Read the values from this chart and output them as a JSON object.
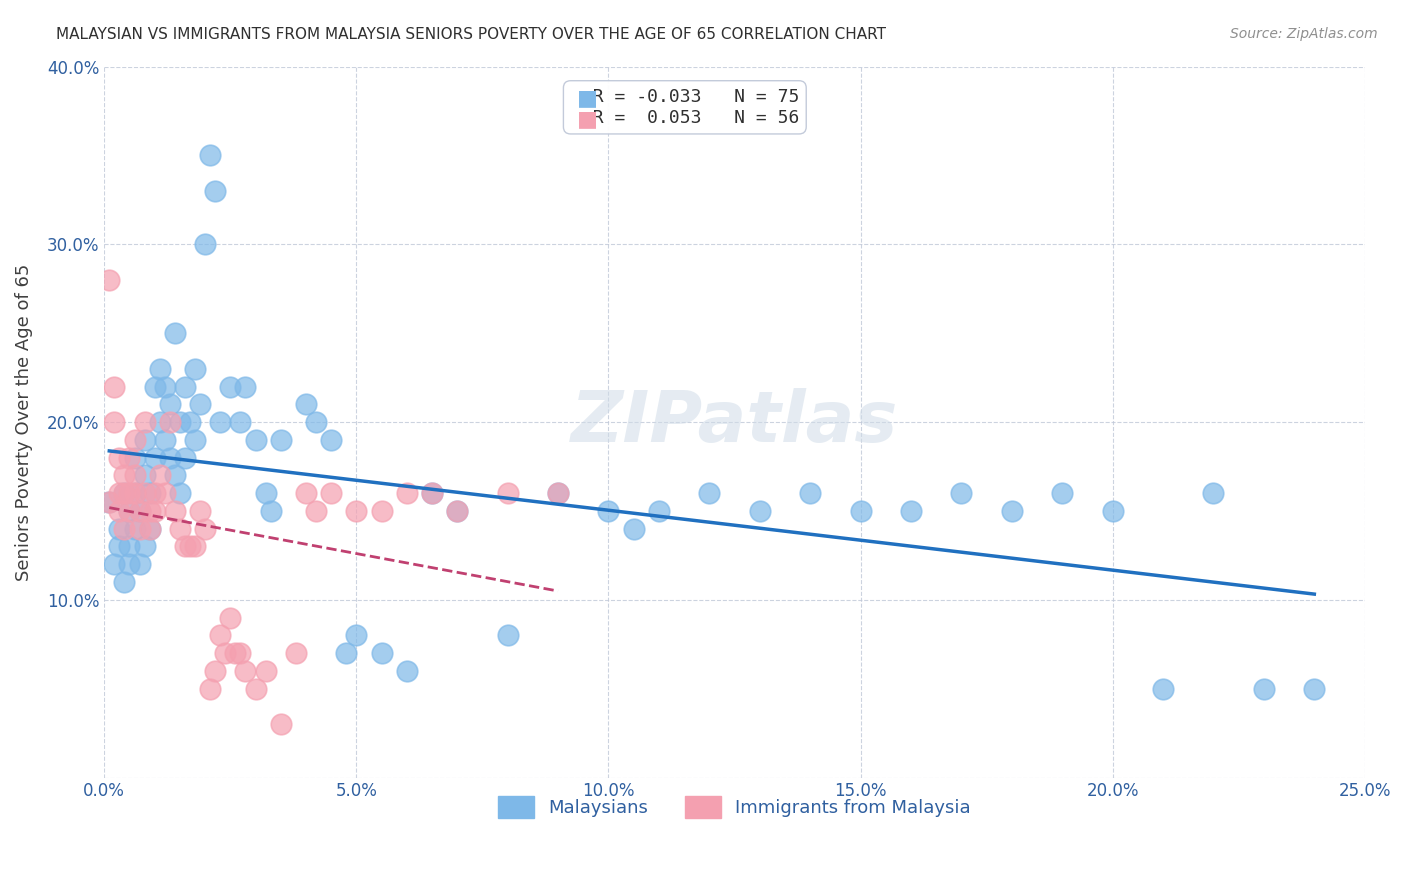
{
  "title": "MALAYSIAN VS IMMIGRANTS FROM MALAYSIA SENIORS POVERTY OVER THE AGE OF 65 CORRELATION CHART",
  "source": "Source: ZipAtlas.com",
  "xlabel": "",
  "ylabel": "Seniors Poverty Over the Age of 65",
  "xlim": [
    0.0,
    0.25
  ],
  "ylim": [
    0.0,
    0.4
  ],
  "xticks": [
    0.0,
    0.05,
    0.1,
    0.15,
    0.2,
    0.25
  ],
  "yticks": [
    0.0,
    0.1,
    0.2,
    0.3,
    0.4
  ],
  "xtick_labels": [
    "0.0%",
    "5.0%",
    "10.0%",
    "15.0%",
    "20.0%",
    "25.0%"
  ],
  "ytick_labels": [
    "",
    "10.0%",
    "20.0%",
    "30.0%",
    "40.0%"
  ],
  "blue_R": "-0.033",
  "blue_N": "75",
  "pink_R": "0.053",
  "pink_N": "56",
  "legend1_label": "Malaysians",
  "legend2_label": "Immigrants from Malaysia",
  "watermark": "ZIPatlas",
  "blue_color": "#7eb8e8",
  "pink_color": "#f4a0b0",
  "blue_line_color": "#2070c0",
  "pink_line_color": "#c04070",
  "background_color": "#ffffff",
  "blue_scatter_x": [
    0.001,
    0.002,
    0.003,
    0.003,
    0.004,
    0.004,
    0.005,
    0.005,
    0.005,
    0.006,
    0.006,
    0.006,
    0.007,
    0.007,
    0.008,
    0.008,
    0.008,
    0.009,
    0.009,
    0.01,
    0.01,
    0.011,
    0.011,
    0.012,
    0.012,
    0.013,
    0.013,
    0.014,
    0.014,
    0.015,
    0.015,
    0.016,
    0.016,
    0.017,
    0.018,
    0.018,
    0.019,
    0.02,
    0.021,
    0.022,
    0.023,
    0.025,
    0.027,
    0.028,
    0.03,
    0.032,
    0.033,
    0.035,
    0.04,
    0.042,
    0.045,
    0.048,
    0.05,
    0.055,
    0.06,
    0.065,
    0.07,
    0.08,
    0.09,
    0.1,
    0.105,
    0.11,
    0.12,
    0.13,
    0.14,
    0.15,
    0.16,
    0.17,
    0.18,
    0.19,
    0.2,
    0.21,
    0.22,
    0.23,
    0.24
  ],
  "blue_scatter_y": [
    0.155,
    0.12,
    0.14,
    0.13,
    0.11,
    0.16,
    0.13,
    0.12,
    0.15,
    0.14,
    0.16,
    0.18,
    0.15,
    0.12,
    0.13,
    0.17,
    0.19,
    0.14,
    0.16,
    0.22,
    0.18,
    0.2,
    0.23,
    0.19,
    0.22,
    0.18,
    0.21,
    0.17,
    0.25,
    0.16,
    0.2,
    0.22,
    0.18,
    0.2,
    0.23,
    0.19,
    0.21,
    0.3,
    0.35,
    0.33,
    0.2,
    0.22,
    0.2,
    0.22,
    0.19,
    0.16,
    0.15,
    0.19,
    0.21,
    0.2,
    0.19,
    0.07,
    0.08,
    0.07,
    0.06,
    0.16,
    0.15,
    0.08,
    0.16,
    0.15,
    0.14,
    0.15,
    0.16,
    0.15,
    0.16,
    0.15,
    0.15,
    0.16,
    0.15,
    0.16,
    0.15,
    0.05,
    0.16,
    0.05,
    0.05
  ],
  "pink_scatter_x": [
    0.001,
    0.001,
    0.002,
    0.002,
    0.003,
    0.003,
    0.003,
    0.004,
    0.004,
    0.004,
    0.005,
    0.005,
    0.005,
    0.006,
    0.006,
    0.006,
    0.007,
    0.007,
    0.008,
    0.008,
    0.009,
    0.009,
    0.01,
    0.01,
    0.011,
    0.012,
    0.013,
    0.014,
    0.015,
    0.016,
    0.017,
    0.018,
    0.019,
    0.02,
    0.021,
    0.022,
    0.023,
    0.024,
    0.025,
    0.026,
    0.027,
    0.028,
    0.03,
    0.032,
    0.035,
    0.038,
    0.04,
    0.042,
    0.045,
    0.05,
    0.055,
    0.06,
    0.065,
    0.07,
    0.08,
    0.09
  ],
  "pink_scatter_y": [
    0.155,
    0.28,
    0.2,
    0.22,
    0.18,
    0.16,
    0.15,
    0.17,
    0.16,
    0.14,
    0.15,
    0.16,
    0.18,
    0.17,
    0.19,
    0.16,
    0.15,
    0.14,
    0.16,
    0.2,
    0.14,
    0.15,
    0.15,
    0.16,
    0.17,
    0.16,
    0.2,
    0.15,
    0.14,
    0.13,
    0.13,
    0.13,
    0.15,
    0.14,
    0.05,
    0.06,
    0.08,
    0.07,
    0.09,
    0.07,
    0.07,
    0.06,
    0.05,
    0.06,
    0.03,
    0.07,
    0.16,
    0.15,
    0.16,
    0.15,
    0.15,
    0.16,
    0.16,
    0.15,
    0.16,
    0.16
  ]
}
